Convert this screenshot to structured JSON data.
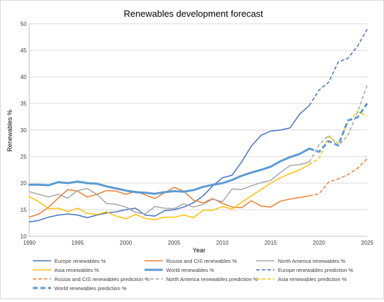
{
  "chart_data": {
    "type": "line",
    "title": "Renewables development forecast",
    "xlabel": "Year",
    "ylabel": "Renewables %",
    "xlim": [
      1990,
      2025
    ],
    "ylim": [
      10,
      50
    ],
    "x_ticks": [
      1990,
      1995,
      2000,
      2005,
      2010,
      2015,
      2020,
      2025
    ],
    "y_ticks": [
      10,
      15,
      20,
      25,
      30,
      35,
      40,
      45,
      50
    ],
    "grid": "horizontal",
    "legend_position": "bottom",
    "series": [
      {
        "name": "Europe renewables %",
        "color": "#4472C4",
        "style": "solid",
        "weight": "normal",
        "x": [
          1990,
          1991,
          1992,
          1993,
          1994,
          1995,
          1996,
          1997,
          1998,
          1999,
          2000,
          2001,
          2002,
          2003,
          2004,
          2005,
          2006,
          2007,
          2008,
          2009,
          2010,
          2011,
          2012,
          2013,
          2014,
          2015,
          2016,
          2017,
          2018,
          2019
        ],
        "y": [
          12.7,
          13.0,
          13.6,
          14.0,
          14.2,
          14.0,
          13.5,
          14.0,
          14.4,
          14.6,
          15.0,
          15.3,
          14.0,
          13.8,
          14.8,
          15.0,
          15.5,
          16.3,
          17.6,
          19.5,
          21.0,
          21.5,
          24.0,
          27.0,
          29.0,
          29.8,
          30.0,
          30.4,
          33.0,
          34.6
        ]
      },
      {
        "name": "Russia and CIS renewables %",
        "color": "#ED7D31",
        "style": "solid",
        "weight": "normal",
        "x": [
          1990,
          1991,
          1992,
          1993,
          1994,
          1995,
          1996,
          1997,
          1998,
          1999,
          2000,
          2001,
          2002,
          2003,
          2004,
          2005,
          2006,
          2007,
          2008,
          2009,
          2010,
          2011,
          2012,
          2013,
          2014,
          2015,
          2016,
          2017,
          2018,
          2019
        ],
        "y": [
          13.6,
          14.2,
          15.5,
          17.2,
          18.8,
          18.5,
          17.4,
          17.9,
          18.6,
          18.5,
          17.9,
          18.5,
          17.8,
          17.1,
          18.2,
          19.2,
          18.5,
          16.8,
          16.3,
          17.1,
          16.2,
          15.5,
          15.4,
          16.7,
          15.7,
          15.5,
          16.6,
          17.0,
          17.3,
          17.6
        ]
      },
      {
        "name": "North America renewables %",
        "color": "#A5A5A5",
        "style": "solid",
        "weight": "normal",
        "x": [
          1990,
          1991,
          1992,
          1993,
          1994,
          1995,
          1996,
          1997,
          1998,
          1999,
          2000,
          2001,
          2002,
          2003,
          2004,
          2005,
          2006,
          2007,
          2008,
          2009,
          2010,
          2011,
          2012,
          2013,
          2014,
          2015,
          2016,
          2017,
          2018,
          2019
        ],
        "y": [
          18.4,
          17.9,
          17.4,
          17.9,
          17.2,
          18.6,
          19.0,
          17.9,
          16.2,
          16.0,
          15.5,
          14.5,
          14.2,
          15.6,
          15.3,
          15.2,
          16.1,
          15.5,
          16.0,
          17.0,
          16.5,
          18.9,
          18.8,
          19.5,
          20.1,
          20.5,
          22.0,
          23.3,
          23.5,
          24.0
        ]
      },
      {
        "name": "Asia renewables %",
        "color": "#FFC000",
        "style": "solid",
        "weight": "normal",
        "x": [
          1990,
          1991,
          1992,
          1993,
          1994,
          1995,
          1996,
          1997,
          1998,
          1999,
          2000,
          2001,
          2002,
          2003,
          2004,
          2005,
          2006,
          2007,
          2008,
          2009,
          2010,
          2011,
          2012,
          2013,
          2014,
          2015,
          2016,
          2017,
          2018,
          2019
        ],
        "y": [
          17.5,
          16.5,
          15.2,
          15.3,
          14.6,
          15.3,
          14.3,
          14.1,
          14.6,
          13.8,
          13.3,
          14.1,
          13.4,
          13.1,
          13.6,
          13.6,
          14.0,
          13.5,
          14.9,
          14.9,
          15.6,
          15.1,
          16.4,
          17.6,
          18.8,
          20.0,
          21.0,
          21.8,
          22.5,
          23.5
        ]
      },
      {
        "name": "World renewables %",
        "color": "#5B9BD5",
        "style": "solid",
        "weight": "bold",
        "x": [
          1990,
          1991,
          1992,
          1993,
          1994,
          1995,
          1996,
          1997,
          1998,
          1999,
          2000,
          2001,
          2002,
          2003,
          2004,
          2005,
          2006,
          2007,
          2008,
          2009,
          2010,
          2011,
          2012,
          2013,
          2014,
          2015,
          2016,
          2017,
          2018,
          2019
        ],
        "y": [
          19.7,
          19.7,
          19.6,
          20.2,
          20.0,
          20.3,
          20.0,
          19.9,
          19.4,
          19.0,
          18.6,
          18.3,
          18.2,
          18.0,
          18.3,
          18.5,
          18.4,
          18.7,
          19.3,
          19.7,
          20.0,
          20.6,
          21.4,
          22.0,
          22.5,
          23.1,
          24.1,
          24.9,
          25.5,
          26.5
        ]
      },
      {
        "name": "Europe renewables prediction %",
        "color": "#4472C4",
        "style": "dashed",
        "weight": "normal",
        "x": [
          2019,
          2020,
          2021,
          2022,
          2023,
          2024,
          2025
        ],
        "y": [
          34.6,
          37.5,
          39.0,
          42.8,
          43.5,
          45.8,
          49.0
        ]
      },
      {
        "name": "Russia and CIS renewables prediction %",
        "color": "#ED7D31",
        "style": "dashed",
        "weight": "normal",
        "x": [
          2019,
          2020,
          2021,
          2022,
          2023,
          2024,
          2025
        ],
        "y": [
          17.6,
          18.0,
          20.2,
          20.8,
          21.6,
          22.8,
          24.6
        ]
      },
      {
        "name": "North America renewables prediction %",
        "color": "#A5A5A5",
        "style": "dashed",
        "weight": "normal",
        "x": [
          2019,
          2020,
          2021,
          2022,
          2023,
          2024,
          2025
        ],
        "y": [
          24.0,
          27.2,
          29.0,
          27.0,
          29.0,
          33.4,
          38.5
        ]
      },
      {
        "name": "Asia renewables prediction %",
        "color": "#FFC000",
        "style": "dashed",
        "weight": "normal",
        "x": [
          2019,
          2020,
          2021,
          2022,
          2023,
          2024,
          2025
        ],
        "y": [
          23.5,
          24.6,
          28.8,
          27.5,
          31.4,
          33.5,
          32.5
        ]
      },
      {
        "name": "World renewables prediction %",
        "color": "#5B9BD5",
        "style": "dashed",
        "weight": "bold",
        "x": [
          2019,
          2020,
          2021,
          2022,
          2023,
          2024,
          2025
        ],
        "y": [
          26.5,
          25.9,
          27.9,
          27.1,
          31.8,
          32.4,
          35.0
        ]
      }
    ]
  }
}
